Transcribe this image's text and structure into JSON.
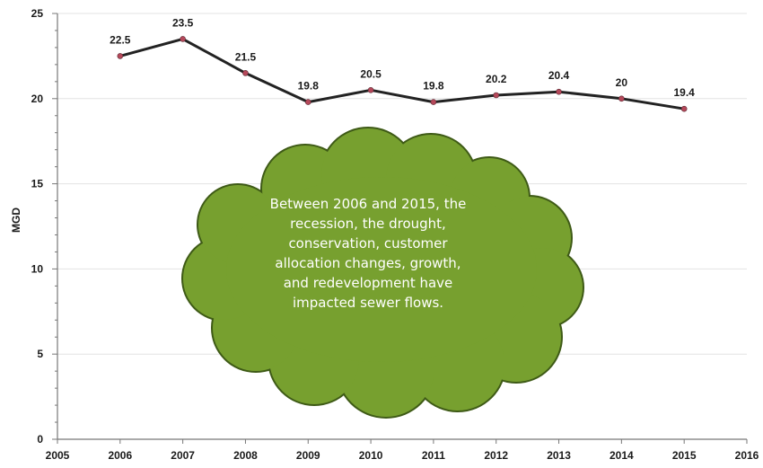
{
  "chart_data": {
    "type": "line",
    "title": "",
    "xlabel": "",
    "ylabel": "MGD",
    "xlim": [
      2005,
      2016
    ],
    "ylim": [
      0,
      25
    ],
    "x_ticks": [
      2005,
      2006,
      2007,
      2008,
      2009,
      2010,
      2011,
      2012,
      2013,
      2014,
      2015,
      2016
    ],
    "y_ticks": [
      0,
      5,
      10,
      15,
      20,
      25
    ],
    "grid": "horizontal",
    "x": [
      2006,
      2007,
      2008,
      2009,
      2010,
      2011,
      2012,
      2013,
      2014,
      2015
    ],
    "series": [
      {
        "values": [
          22.5,
          23.5,
          21.5,
          19.8,
          20.5,
          19.8,
          20.2,
          20.4,
          20,
          19.4
        ],
        "labels": [
          "22.5",
          "23.5",
          "21.5",
          "19.8",
          "20.5",
          "19.8",
          "20.2",
          "20.4",
          "20",
          "19.4"
        ],
        "color": "#222222",
        "marker_color": "#b5485a"
      }
    ],
    "annotation": {
      "shape": "cloud",
      "fill": "#77a02f",
      "stroke": "#3e5a16",
      "text_color": "#ffffff",
      "lines": [
        "Between 2006 and 2015, the",
        "recession, the drought,",
        "conservation, customer",
        "allocation changes, growth,",
        "and redevelopment have",
        "impacted sewer flows."
      ]
    }
  }
}
